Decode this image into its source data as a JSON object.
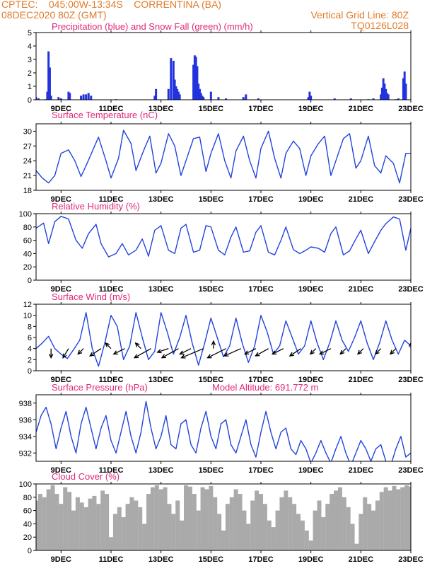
{
  "header": {
    "line1_left": "CPTEC:    045:00W-13:34S    CORRENTINA (BA)",
    "line2_left": "08DEC2020 80Z (GMT)",
    "line1_right": "Vertical Grid Line: 80Z",
    "line2_right": "TQ0126L028"
  },
  "colors": {
    "header": "#e07b2a",
    "title": "#e0287a",
    "rain": "#2233dd",
    "snow": "#22aa22",
    "line": "#2244dd",
    "cloud": "#aaaaaa",
    "arrow": "#000000"
  },
  "x_axis": {
    "domain": [
      8,
      23
    ],
    "ticks": [
      9,
      11,
      13,
      15,
      17,
      19,
      21,
      23
    ],
    "tick_labels": [
      "9DEC",
      "11DEC",
      "13DEC",
      "15DEC",
      "17DEC",
      "19DEC",
      "21DEC",
      "23DEC"
    ]
  },
  "chart_data": [
    {
      "id": "precip",
      "type": "bar",
      "title": "Precipitation (blue) and Snow Fall (green) (mm/h)",
      "ylim": [
        0,
        5
      ],
      "yticks": [
        0,
        1,
        2,
        3,
        4,
        5
      ],
      "series": [
        {
          "name": "Precipitation",
          "color": "#2233dd",
          "x": [
            8.0,
            8.1,
            8.45,
            8.5,
            8.55,
            8.6,
            8.9,
            9.0,
            9.3,
            9.35,
            9.8,
            9.9,
            10.0,
            10.1,
            10.2,
            12.75,
            12.8,
            13.3,
            13.4,
            13.5,
            13.55,
            13.6,
            13.65,
            13.7,
            13.75,
            14.3,
            14.35,
            14.4,
            14.45,
            14.5,
            14.55,
            14.6,
            14.65,
            14.7,
            15.0,
            15.3,
            15.6,
            16.3,
            16.4,
            16.9,
            18.9,
            18.95,
            19.0,
            19.95,
            20.6,
            21.5,
            21.8,
            21.85,
            21.9,
            21.95,
            22.0,
            22.05,
            22.1,
            22.5,
            22.7,
            22.75,
            22.8
          ],
          "values": [
            0.2,
            0.1,
            0.6,
            3.6,
            2.4,
            0.3,
            0.2,
            0.1,
            0.6,
            0.5,
            0.3,
            0.4,
            0.4,
            0.5,
            0.3,
            0.3,
            0.8,
            0.8,
            3.1,
            2.9,
            1.5,
            1.0,
            0.8,
            0.6,
            0.4,
            2.6,
            3.3,
            3.2,
            2.5,
            1.2,
            0.8,
            0.5,
            0.3,
            0.2,
            0.6,
            0.2,
            0.1,
            0.2,
            0.4,
            0.1,
            0.2,
            0.6,
            0.3,
            0.1,
            0.1,
            0.1,
            0.4,
            0.9,
            1.6,
            1.2,
            0.8,
            0.5,
            0.4,
            0.1,
            1.6,
            2.1,
            1.2
          ]
        },
        {
          "name": "Snow Fall",
          "color": "#22aa22",
          "x": [
            8.4,
            11.2,
            16.6,
            21.3,
            22.4
          ],
          "values": [
            0.05,
            0.05,
            0.03,
            0.05,
            0.05
          ]
        }
      ]
    },
    {
      "id": "temp",
      "type": "line",
      "title": "Surface Temperature (nC)",
      "ylim": [
        18,
        31.5
      ],
      "yticks": [
        18,
        21,
        24,
        27,
        30
      ],
      "series": [
        {
          "name": "Temperature",
          "color": "#2244dd",
          "x": [
            8.0,
            8.25,
            8.5,
            8.75,
            9.0,
            9.3,
            9.55,
            9.8,
            10.0,
            10.3,
            10.5,
            10.8,
            11.0,
            11.3,
            11.5,
            11.8,
            12.0,
            12.3,
            12.55,
            12.8,
            13.0,
            13.3,
            13.55,
            13.8,
            14.0,
            14.3,
            14.55,
            14.8,
            15.0,
            15.3,
            15.55,
            15.8,
            16.0,
            16.3,
            16.55,
            16.8,
            17.0,
            17.3,
            17.55,
            17.8,
            18.0,
            18.3,
            18.55,
            18.8,
            19.0,
            19.3,
            19.55,
            19.8,
            20.0,
            20.3,
            20.55,
            20.8,
            21.0,
            21.3,
            21.55,
            21.8,
            22.0,
            22.3,
            22.55,
            22.8,
            23.0
          ],
          "values": [
            22.0,
            20.5,
            19.5,
            21.0,
            25.5,
            26.2,
            24.0,
            20.8,
            23.0,
            26.5,
            28.8,
            24.0,
            20.5,
            24.5,
            30.2,
            27.5,
            22.0,
            26.0,
            29.0,
            21.5,
            23.5,
            29.5,
            27.0,
            21.0,
            24.0,
            28.5,
            28.8,
            21.8,
            25.5,
            29.5,
            24.0,
            20.5,
            26.0,
            29.0,
            24.0,
            20.5,
            26.5,
            30.0,
            24.5,
            20.5,
            25.5,
            28.0,
            26.5,
            21.0,
            25.0,
            27.5,
            29.0,
            21.0,
            24.0,
            28.5,
            29.5,
            22.5,
            24.0,
            29.0,
            23.0,
            21.5,
            25.0,
            23.5,
            19.5,
            25.5,
            25.5
          ]
        }
      ]
    },
    {
      "id": "humidity",
      "type": "line",
      "title": "Relative Humidity (%)",
      "ylim": [
        0,
        100
      ],
      "yticks": [
        0,
        20,
        40,
        60,
        80,
        100
      ],
      "series": [
        {
          "name": "Relative Humidity",
          "color": "#2244dd",
          "x": [
            8.0,
            8.3,
            8.5,
            8.75,
            9.0,
            9.3,
            9.6,
            9.85,
            10.1,
            10.4,
            10.6,
            10.9,
            11.2,
            11.45,
            11.7,
            12.0,
            12.25,
            12.5,
            12.75,
            13.0,
            13.3,
            13.55,
            13.8,
            14.0,
            14.3,
            14.55,
            14.8,
            15.0,
            15.3,
            15.55,
            15.8,
            16.0,
            16.3,
            16.55,
            16.8,
            17.0,
            17.3,
            17.55,
            17.8,
            18.0,
            18.3,
            18.55,
            18.8,
            19.0,
            19.3,
            19.55,
            19.8,
            20.0,
            20.3,
            20.55,
            20.8,
            21.0,
            21.3,
            21.55,
            21.8,
            22.0,
            22.3,
            22.55,
            22.8,
            23.0
          ],
          "values": [
            78,
            86,
            55,
            88,
            96,
            92,
            60,
            48,
            70,
            84,
            55,
            35,
            40,
            55,
            38,
            45,
            62,
            36,
            75,
            82,
            45,
            40,
            78,
            84,
            42,
            45,
            82,
            80,
            45,
            38,
            65,
            80,
            42,
            44,
            72,
            82,
            42,
            38,
            60,
            80,
            46,
            40,
            45,
            50,
            48,
            42,
            70,
            80,
            38,
            44,
            62,
            75,
            40,
            58,
            75,
            85,
            95,
            92,
            45,
            78
          ]
        }
      ]
    },
    {
      "id": "wind",
      "type": "line",
      "title": "Surface Wind (m/s)",
      "ylim": [
        0,
        12
      ],
      "yticks": [
        0,
        2,
        4,
        6,
        8,
        10,
        12
      ],
      "series": [
        {
          "name": "Wind speed",
          "color": "#2244dd",
          "x": [
            8.0,
            8.25,
            8.5,
            8.75,
            9.0,
            9.25,
            9.5,
            9.75,
            10.0,
            10.25,
            10.5,
            10.75,
            11.0,
            11.25,
            11.5,
            11.75,
            12.0,
            12.25,
            12.5,
            12.75,
            13.0,
            13.25,
            13.5,
            13.75,
            14.0,
            14.25,
            14.5,
            14.75,
            15.0,
            15.25,
            15.5,
            15.75,
            16.0,
            16.25,
            16.5,
            16.75,
            17.0,
            17.25,
            17.5,
            17.75,
            18.0,
            18.25,
            18.5,
            18.75,
            19.0,
            19.25,
            19.5,
            19.75,
            20.0,
            20.25,
            20.5,
            20.75,
            21.0,
            21.25,
            21.5,
            21.75,
            22.0,
            22.25,
            22.5,
            22.75,
            23.0
          ],
          "values": [
            4.0,
            5.0,
            6.2,
            4.0,
            3.0,
            2.2,
            3.8,
            5.5,
            10.5,
            4.0,
            0.8,
            5.0,
            10.0,
            8.0,
            2.0,
            4.5,
            10.5,
            6.0,
            2.0,
            3.5,
            10.5,
            7.0,
            3.0,
            6.0,
            10.0,
            5.0,
            1.0,
            5.0,
            9.5,
            6.0,
            2.5,
            4.5,
            9.5,
            5.0,
            1.5,
            4.5,
            10.0,
            7.0,
            3.0,
            4.5,
            9.0,
            6.0,
            3.0,
            4.5,
            9.0,
            5.0,
            2.0,
            5.0,
            9.0,
            5.5,
            3.5,
            6.0,
            9.0,
            5.0,
            2.0,
            5.0,
            9.0,
            5.5,
            3.0,
            5.5,
            4.5
          ]
        },
        {
          "name": "Wind vectors",
          "color": "#000000",
          "x": [
            8.0,
            8.6,
            9.3,
            9.9,
            10.6,
            11.0,
            11.55,
            12.2,
            12.6,
            13.3,
            13.7,
            14.2,
            14.7,
            15.1,
            15.6,
            16.2,
            16.8,
            17.3,
            17.9,
            18.6,
            19.2,
            19.8,
            20.4,
            21.1,
            21.8,
            22.4,
            23.0
          ],
          "u": [
            -0.6,
            0.0,
            -0.3,
            -0.3,
            -0.6,
            -0.3,
            -0.6,
            -0.3,
            -0.9,
            -0.6,
            -0.9,
            -0.6,
            -1.2,
            0.0,
            -1.0,
            -0.9,
            -0.6,
            -0.7,
            -0.6,
            -0.6,
            -0.3,
            -0.6,
            -0.3,
            -0.3,
            -0.3,
            -0.3,
            0.0
          ],
          "v": [
            -0.3,
            -0.5,
            -0.5,
            -0.3,
            -0.4,
            0.3,
            -0.3,
            0.3,
            -0.5,
            -0.2,
            -0.5,
            -0.3,
            -0.5,
            0.4,
            -0.5,
            -0.4,
            -0.3,
            -0.4,
            -0.3,
            -0.4,
            -0.3,
            -0.3,
            -0.3,
            -0.3,
            -0.3,
            -0.3,
            0.3
          ]
        }
      ]
    },
    {
      "id": "pressure",
      "type": "line",
      "title": "Surface Pressure (hPa)",
      "annotation": "Model Altitude: 691.772 m",
      "ylim": [
        931,
        939
      ],
      "yticks": [
        932,
        934,
        936,
        938
      ],
      "series": [
        {
          "name": "Surface Pressure",
          "color": "#2244dd",
          "x": [
            8.0,
            8.2,
            8.4,
            8.6,
            8.8,
            9.0,
            9.2,
            9.4,
            9.6,
            9.8,
            10.0,
            10.2,
            10.4,
            10.6,
            10.8,
            11.0,
            11.2,
            11.4,
            11.6,
            11.8,
            12.0,
            12.2,
            12.4,
            12.6,
            12.8,
            13.0,
            13.2,
            13.4,
            13.6,
            13.8,
            14.0,
            14.2,
            14.4,
            14.6,
            14.8,
            15.0,
            15.2,
            15.4,
            15.6,
            15.8,
            16.0,
            16.2,
            16.4,
            16.6,
            16.8,
            17.0,
            17.2,
            17.4,
            17.6,
            17.8,
            18.0,
            18.2,
            18.4,
            18.6,
            18.8,
            19.0,
            19.2,
            19.4,
            19.6,
            19.8,
            20.0,
            20.2,
            20.4,
            20.6,
            20.8,
            21.0,
            21.2,
            21.4,
            21.6,
            21.8,
            22.0,
            22.2,
            22.4,
            22.6,
            22.8,
            23.0
          ],
          "values": [
            934.5,
            936.5,
            937.5,
            935.5,
            932.5,
            935.0,
            937.0,
            934.0,
            932.0,
            935.5,
            937.5,
            935.0,
            932.5,
            935.0,
            936.5,
            933.5,
            932.0,
            934.5,
            937.0,
            934.0,
            932.0,
            934.5,
            938.2,
            935.0,
            932.5,
            934.0,
            936.5,
            933.0,
            932.5,
            935.5,
            936.0,
            933.0,
            932.0,
            935.0,
            937.0,
            934.0,
            932.5,
            935.5,
            936.0,
            933.0,
            932.0,
            934.0,
            936.0,
            933.0,
            931.5,
            934.5,
            937.0,
            934.5,
            932.5,
            934.5,
            935.0,
            932.5,
            931.8,
            933.5,
            932.5,
            930.8,
            932.0,
            933.5,
            932.0,
            930.8,
            932.5,
            934.0,
            932.0,
            930.5,
            932.0,
            933.5,
            932.5,
            931.0,
            932.5,
            933.0,
            931.0,
            930.5,
            932.5,
            934.0,
            931.5,
            932.0
          ]
        }
      ]
    },
    {
      "id": "cloud",
      "type": "bar",
      "title": "Cloud Cover (%)",
      "ylim": [
        0,
        100
      ],
      "yticks": [
        0,
        20,
        40,
        60,
        80,
        100
      ],
      "series": [
        {
          "name": "Cloud Cover",
          "color": "#aaaaaa",
          "x": [
            8.0,
            8.1667,
            8.3333,
            8.5,
            8.6667,
            8.8333,
            9.0,
            9.1667,
            9.3333,
            9.5,
            9.6667,
            9.8333,
            10.0,
            10.1667,
            10.3333,
            10.5,
            10.6667,
            10.8333,
            11.0,
            11.1667,
            11.3333,
            11.5,
            11.6667,
            11.8333,
            12.0,
            12.1667,
            12.3333,
            12.5,
            12.6667,
            12.8333,
            13.0,
            13.1667,
            13.3333,
            13.5,
            13.6667,
            13.8333,
            14.0,
            14.1667,
            14.3333,
            14.5,
            14.6667,
            14.8333,
            15.0,
            15.1667,
            15.3333,
            15.5,
            15.6667,
            15.8333,
            16.0,
            16.1667,
            16.3333,
            16.5,
            16.6667,
            16.8333,
            17.0,
            17.1667,
            17.3333,
            17.5,
            17.6667,
            17.8333,
            18.0,
            18.1667,
            18.3333,
            18.5,
            18.6667,
            18.8333,
            19.0,
            19.1667,
            19.3333,
            19.5,
            19.6667,
            19.8333,
            20.0,
            20.1667,
            20.3333,
            20.5,
            20.6667,
            20.8333,
            21.0,
            21.1667,
            21.3333,
            21.5,
            21.6667,
            21.8333,
            22.0,
            22.1667,
            22.3333,
            22.5,
            22.6667,
            22.8333,
            23.0
          ],
          "values": [
            75,
            85,
            80,
            92,
            98,
            85,
            70,
            95,
            88,
            60,
            80,
            72,
            65,
            78,
            82,
            70,
            90,
            85,
            20,
            55,
            65,
            50,
            70,
            80,
            75,
            65,
            40,
            85,
            95,
            98,
            92,
            95,
            70,
            55,
            75,
            45,
            98,
            96,
            85,
            60,
            95,
            92,
            97,
            80,
            55,
            30,
            70,
            80,
            92,
            85,
            60,
            40,
            75,
            90,
            85,
            70,
            45,
            35,
            60,
            80,
            90,
            80,
            70,
            55,
            45,
            30,
            15,
            60,
            75,
            50,
            70,
            85,
            90,
            95,
            80,
            65,
            40,
            10,
            55,
            80,
            70,
            60,
            75,
            88,
            95,
            90,
            97,
            92,
            95,
            98,
            96
          ]
        }
      ]
    }
  ]
}
